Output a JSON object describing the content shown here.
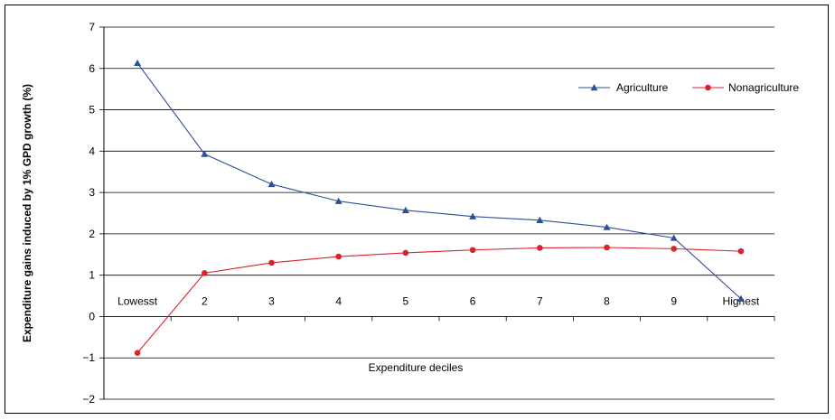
{
  "chart_data": {
    "type": "line",
    "categories": [
      "Lowesst",
      "2",
      "3",
      "4",
      "5",
      "6",
      "7",
      "8",
      "9",
      "Highest"
    ],
    "series": [
      {
        "name": "Agriculture",
        "color": "#2E4F9A",
        "marker": "triangle",
        "values": [
          6.13,
          3.93,
          3.2,
          2.79,
          2.57,
          2.42,
          2.33,
          2.16,
          1.9,
          0.43
        ]
      },
      {
        "name": "Nonagriculture",
        "color": "#D9232D",
        "marker": "circle",
        "values": [
          -0.88,
          1.05,
          1.3,
          1.45,
          1.54,
          1.61,
          1.66,
          1.67,
          1.64,
          1.58
        ]
      }
    ],
    "xlabel": "Expenditure deciles",
    "ylabel": "Expenditure gains induced by 1% GPD growth (%)",
    "ylim": [
      -2,
      7
    ],
    "yticks": [
      "−2",
      "−1",
      "0",
      "1",
      "2",
      "3",
      "4",
      "5",
      "6",
      "7"
    ],
    "grid": true,
    "legend_position": "top-right"
  }
}
